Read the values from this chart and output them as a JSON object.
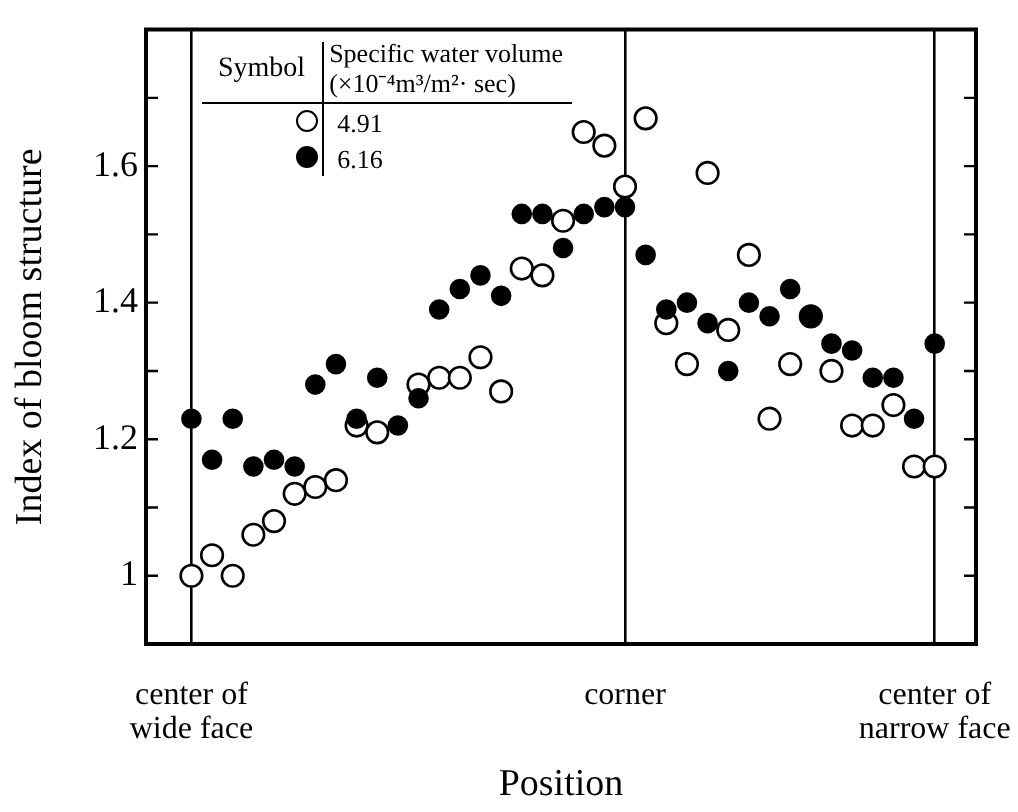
{
  "chart_data": {
    "type": "scatter",
    "xlabel": "Position",
    "ylabel": "Index of bloom structure",
    "legend_title": "Specific water volume (×10⁻⁴m³/m²· sec)",
    "annotations": [
      "Symbol"
    ],
    "categories": [
      "center of wide face",
      null,
      null,
      null,
      null,
      null,
      null,
      null,
      null,
      null,
      null,
      null,
      null,
      null,
      null,
      null,
      null,
      null,
      null,
      null,
      null,
      "corner",
      null,
      null,
      null,
      null,
      null,
      null,
      null,
      null,
      null,
      null,
      null,
      null,
      null,
      null,
      "center of narrow face"
    ],
    "series": [
      {
        "name": "4.91",
        "color": "#ffffff",
        "values": [
          1.0,
          1.03,
          1.0,
          1.06,
          1.08,
          1.12,
          1.13,
          1.14,
          1.22,
          1.21,
          null,
          1.28,
          1.29,
          1.29,
          1.32,
          1.27,
          1.45,
          1.44,
          1.52,
          1.65,
          1.63,
          1.57,
          1.67,
          1.37,
          1.31,
          1.59,
          1.36,
          1.47,
          1.23,
          1.31,
          1.38,
          1.3,
          1.22,
          1.22,
          1.25,
          1.16,
          1.16
        ]
      },
      {
        "name": "6.16",
        "color": "#000000",
        "values": [
          1.23,
          1.17,
          1.23,
          1.16,
          1.17,
          1.16,
          1.28,
          1.31,
          1.23,
          1.29,
          1.22,
          1.26,
          1.39,
          1.42,
          1.44,
          1.41,
          1.53,
          1.53,
          1.48,
          1.53,
          1.54,
          1.54,
          1.47,
          1.39,
          1.4,
          1.37,
          1.3,
          1.4,
          1.38,
          1.42,
          1.38,
          1.34,
          1.33,
          1.29,
          1.29,
          1.23,
          1.34
        ]
      }
    ],
    "ylim": [
      0.9,
      1.8
    ],
    "yticks": [
      1,
      {
        "value": 1.1,
        "label": null
      },
      1.2,
      {
        "value": 1.3,
        "label": null
      },
      1.4,
      {
        "value": 1.5,
        "label": null
      },
      1.6,
      {
        "value": 1.7,
        "label": null
      }
    ],
    "grid": "x",
    "legend": "top left",
    "marker": "circle"
  }
}
